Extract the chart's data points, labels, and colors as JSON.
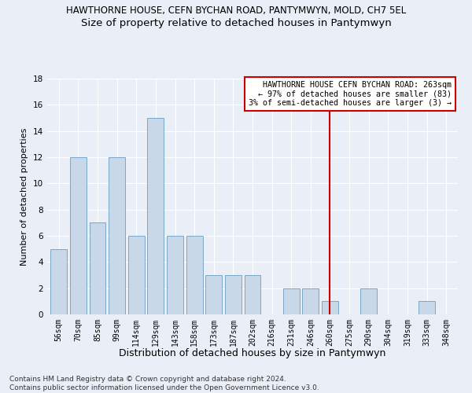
{
  "title_line1": "HAWTHORNE HOUSE, CEFN BYCHAN ROAD, PANTYMWYN, MOLD, CH7 5EL",
  "title_line2": "Size of property relative to detached houses in Pantymwyn",
  "xlabel": "Distribution of detached houses by size in Pantymwyn",
  "ylabel": "Number of detached properties",
  "bar_labels": [
    "56sqm",
    "70sqm",
    "85sqm",
    "99sqm",
    "114sqm",
    "129sqm",
    "143sqm",
    "158sqm",
    "173sqm",
    "187sqm",
    "202sqm",
    "216sqm",
    "231sqm",
    "246sqm",
    "260sqm",
    "275sqm",
    "290sqm",
    "304sqm",
    "319sqm",
    "333sqm",
    "348sqm"
  ],
  "bar_values": [
    5,
    12,
    7,
    12,
    6,
    15,
    6,
    6,
    3,
    3,
    3,
    0,
    2,
    2,
    1,
    0,
    2,
    0,
    0,
    1,
    0
  ],
  "bar_color": "#c8d8e8",
  "bar_edgecolor": "#7ba8c8",
  "vline_x": 14,
  "vline_color": "#cc0000",
  "annotation_title": "HAWTHORNE HOUSE CEFN BYCHAN ROAD: 263sqm",
  "annotation_line1": "← 97% of detached houses are smaller (83)",
  "annotation_line2": "3% of semi-detached houses are larger (3) →",
  "annotation_box_facecolor": "#ffffff",
  "annotation_box_edgecolor": "#cc0000",
  "ylim": [
    0,
    18
  ],
  "yticks": [
    0,
    2,
    4,
    6,
    8,
    10,
    12,
    14,
    16,
    18
  ],
  "background_color": "#eaeff7",
  "footer": "Contains HM Land Registry data © Crown copyright and database right 2024.\nContains public sector information licensed under the Open Government Licence v3.0.",
  "grid_color": "#ffffff",
  "title_fontsize": 8.5,
  "subtitle_fontsize": 9.5,
  "ylabel_fontsize": 8,
  "xlabel_fontsize": 9,
  "tick_fontsize": 7,
  "footer_fontsize": 6.5,
  "ann_fontsize": 7.2
}
